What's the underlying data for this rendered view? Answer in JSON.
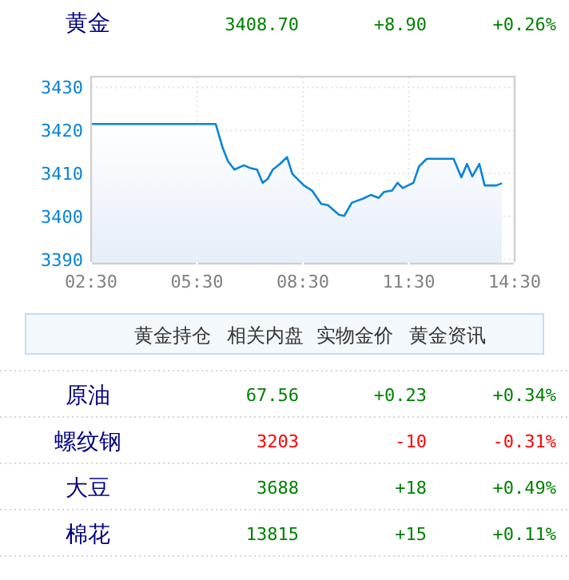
{
  "chart_data": [
    {
      "type": "area",
      "title": "黄金",
      "annotations": [
        "3408.70",
        "+8.90",
        "+0.26%"
      ],
      "x": [
        2.5,
        6.03,
        6.23,
        6.38,
        6.56,
        6.83,
        7.02,
        7.2,
        7.36,
        7.5,
        7.65,
        7.85,
        8.05,
        8.2,
        8.53,
        8.76,
        9.02,
        9.21,
        9.52,
        9.67,
        9.89,
        10.2,
        10.43,
        10.65,
        10.8,
        11.03,
        11.18,
        11.33,
        11.63,
        11.79,
        12.01,
        12.46,
        12.77,
        12.99,
        13.15,
        13.3,
        13.5,
        13.65,
        13.98,
        14.14
      ],
      "values": [
        3421.5,
        3421.5,
        3415.9,
        3412.8,
        3410.9,
        3411.9,
        3411.2,
        3410.9,
        3407.8,
        3408.7,
        3410.9,
        3412.2,
        3413.8,
        3409.9,
        3407.2,
        3406.0,
        3402.9,
        3402.6,
        3400.4,
        3400.1,
        3403.2,
        3404.1,
        3405.0,
        3404.3,
        3405.7,
        3406.0,
        3407.8,
        3406.6,
        3407.8,
        3411.6,
        3413.4,
        3413.4,
        3413.4,
        3409.1,
        3412.2,
        3409.3,
        3412.2,
        3407.2,
        3407.2,
        3407.7
      ],
      "color": "#0a84d6",
      "xlim": [
        2.5,
        14.5
      ],
      "xticks": [
        {
          "value": 2.5,
          "label": "02:30"
        },
        {
          "value": 5.5,
          "label": "05:30"
        },
        {
          "value": 8.5,
          "label": "08:30"
        },
        {
          "value": 11.5,
          "label": "11:30"
        },
        {
          "value": 14.5,
          "label": "14:30"
        }
      ],
      "ylim": [
        3389,
        3432.5
      ],
      "yticks": [
        3390,
        3400,
        3410,
        3420,
        3430
      ],
      "grid": true
    },
    {
      "type": "other",
      "annotations": [
        "黄金持仓",
        "相关内盘",
        "实物金价",
        "黄金资讯"
      ],
      "categories": [
        "原油",
        "螺纹钢",
        "大豆",
        "棉花"
      ],
      "series": [
        {
          "values": [
            67.56,
            3203,
            3688,
            13815
          ],
          "value_labels": [
            "67.56",
            "3203",
            "3688",
            "13815"
          ],
          "colors": [
            "#008000",
            "#ff0000",
            "#008000",
            "#008000"
          ]
        },
        {
          "values": [
            0.23,
            -10,
            18,
            15
          ],
          "value_labels": [
            "+0.23",
            "-10",
            "+18",
            "+15"
          ],
          "colors": [
            "#008000",
            "#ff0000",
            "#008000",
            "#008000"
          ]
        },
        {
          "values": [
            0.34,
            -0.31,
            0.49,
            0.11
          ],
          "value_labels": [
            "+0.34%",
            "-0.31%",
            "+0.49%",
            "+0.11%"
          ],
          "colors": [
            "#008000",
            "#ff0000",
            "#008000",
            "#008000"
          ]
        }
      ]
    }
  ]
}
